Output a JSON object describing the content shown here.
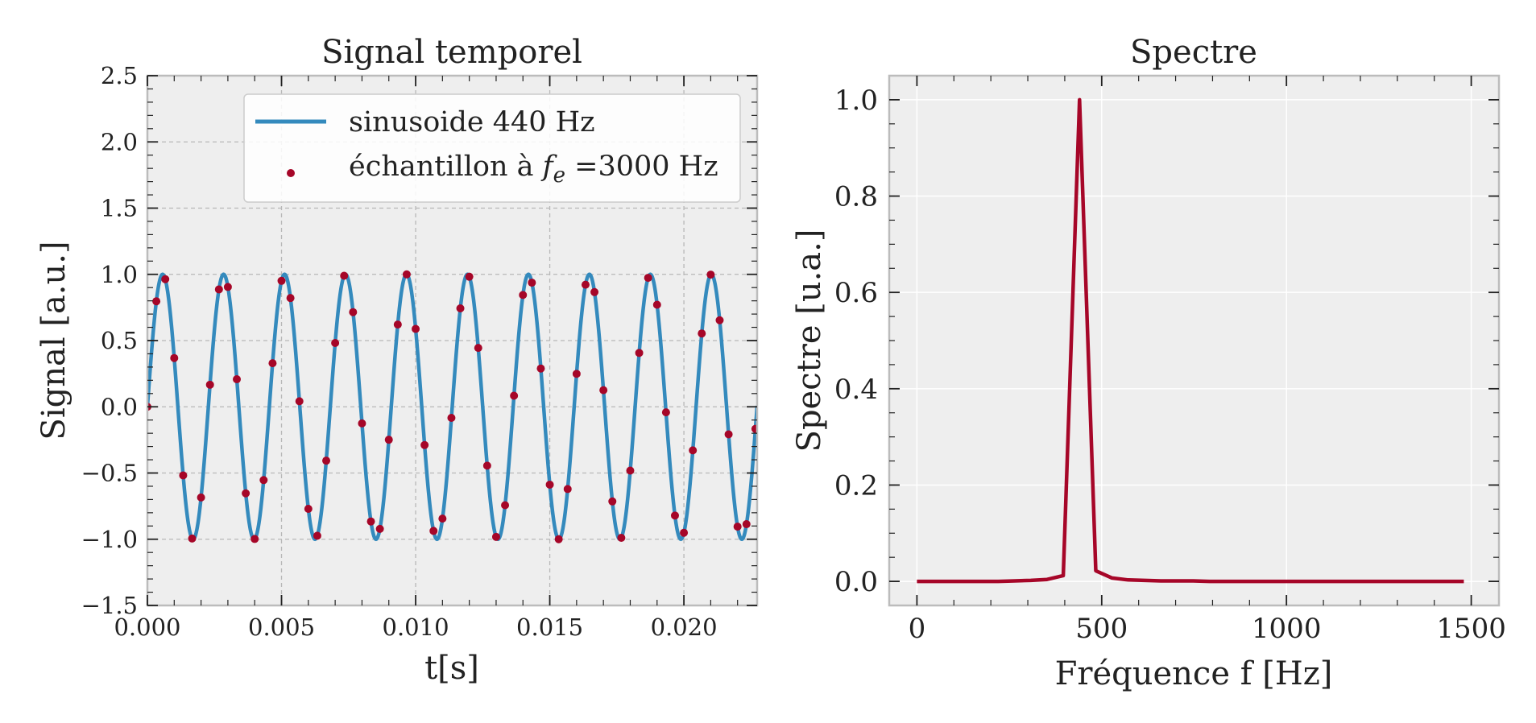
{
  "chart_data": [
    {
      "type": "line",
      "title": "Signal temporel",
      "xlabel": "t[s]",
      "ylabel": "Signal [a.u.]",
      "xlim": [
        0,
        0.02273
      ],
      "ylim": [
        -1.5,
        2.5
      ],
      "xticks": [
        0.0,
        0.005,
        0.01,
        0.015,
        0.02
      ],
      "xtick_labels": [
        "0.000",
        "0.005",
        "0.010",
        "0.015",
        "0.020"
      ],
      "yticks": [
        -1.5,
        -1.0,
        -0.5,
        0.0,
        0.5,
        1.0,
        1.5,
        2.0,
        2.5
      ],
      "ytick_labels": [
        "−1.5",
        "−1.0",
        "−0.5",
        "0.0",
        "0.5",
        "1.0",
        "1.5",
        "2.0",
        "2.5"
      ],
      "grid": "dashed",
      "legend_position": "upper-right",
      "series": [
        {
          "name": "sinusoide 440 Hz",
          "kind": "line",
          "function": "sin(2*pi*440*t)",
          "frequency_hz": 440,
          "color": "#348ABD"
        },
        {
          "name_text": "échantillon à ",
          "name_math_base": "f",
          "name_math_sub": "e",
          "name_suffix": " =3000 Hz",
          "kind": "scatter",
          "sample_rate_hz": 3000,
          "color": "#A60628"
        }
      ]
    },
    {
      "type": "line",
      "title": "Spectre",
      "xlabel": "Fréquence f [Hz]",
      "ylabel": "Spectre [u.a.]",
      "xlim": [
        -75,
        1575
      ],
      "ylim": [
        -0.05,
        1.05
      ],
      "xticks": [
        0,
        500,
        1000,
        1500
      ],
      "xtick_labels": [
        "0",
        "500",
        "1000",
        "1500"
      ],
      "yticks": [
        0.0,
        0.2,
        0.4,
        0.6,
        0.8,
        1.0
      ],
      "ytick_labels": [
        "0.0",
        "0.2",
        "0.4",
        "0.6",
        "0.8",
        "1.0"
      ],
      "grid": "solid",
      "series": [
        {
          "kind": "line",
          "color": "#A60628",
          "x": [
            0,
            44,
            88,
            132,
            176,
            220,
            264,
            308,
            352,
            396,
            440,
            484,
            528,
            572,
            616,
            660,
            704,
            748,
            792,
            836,
            880,
            924,
            968,
            1012,
            1056,
            1100,
            1144,
            1188,
            1232,
            1276,
            1320,
            1364,
            1408,
            1452,
            1480
          ],
          "y": [
            0.0,
            0.0,
            0.0,
            0.0,
            0.0,
            0.0,
            0.001,
            0.002,
            0.004,
            0.012,
            1.0,
            0.022,
            0.007,
            0.003,
            0.002,
            0.001,
            0.001,
            0.001,
            0.0,
            0.0,
            0.0,
            0.0,
            0.0,
            0.0,
            0.0,
            0.0,
            0.0,
            0.0,
            0.0,
            0.0,
            0.0,
            0.0,
            0.0,
            0.0,
            0.0
          ]
        }
      ]
    }
  ]
}
